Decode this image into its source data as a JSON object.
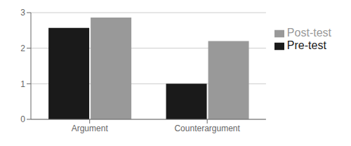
{
  "chart_data": {
    "type": "bar",
    "categories": [
      "Argument",
      "Counterargument"
    ],
    "series": [
      {
        "name": "Pre-test",
        "color": "#1a1a1a",
        "values": [
          2.57,
          1.0
        ]
      },
      {
        "name": "Post-test",
        "color": "#999999",
        "values": [
          2.86,
          2.2
        ]
      }
    ],
    "ylim": [
      0,
      3
    ],
    "yticks": [
      0,
      1,
      2,
      3
    ],
    "grid": true,
    "legend": "right"
  }
}
